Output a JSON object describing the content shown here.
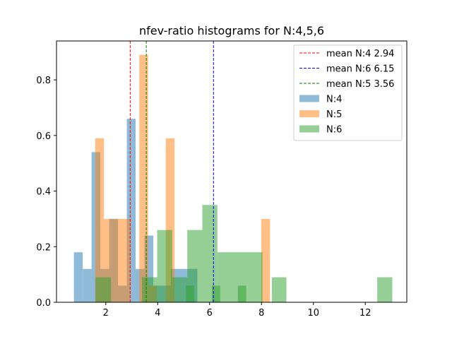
{
  "chart_data": {
    "type": "bar",
    "title": "nfev-ratio histograms for N:4,5,6",
    "xlabel": "",
    "ylabel": "",
    "xlim": [
      0.1,
      13.6
    ],
    "ylim": [
      0,
      0.94
    ],
    "xticks": [
      2,
      4,
      6,
      8,
      10,
      12
    ],
    "yticks": [
      0.0,
      0.2,
      0.4,
      0.6,
      0.8
    ],
    "xtick_labels": [
      "2",
      "4",
      "6",
      "8",
      "10",
      "12"
    ],
    "ytick_labels": [
      "0.0",
      "0.2",
      "0.4",
      "0.6",
      "0.8"
    ],
    "grid": false,
    "legend_position": "top-right",
    "series": [
      {
        "name": "N:4",
        "color": "#1f77b4",
        "bins": [
          {
            "x0": 0.77,
            "x1": 1.11,
            "y": 0.18
          },
          {
            "x0": 1.11,
            "x2": 0,
            "x1": 1.45,
            "y": 0.12
          },
          {
            "x0": 1.45,
            "x1": 1.79,
            "y": 0.54
          },
          {
            "x0": 1.79,
            "x1": 2.13,
            "y": 0.12
          },
          {
            "x0": 2.13,
            "x1": 2.47,
            "y": 0.3
          },
          {
            "x0": 2.47,
            "x1": 2.81,
            "y": 0.06
          },
          {
            "x0": 2.81,
            "x1": 3.15,
            "y": 0.66
          },
          {
            "x0": 3.15,
            "x1": 3.49,
            "y": 0.12
          },
          {
            "x0": 3.49,
            "x1": 3.83,
            "y": 0.24
          },
          {
            "x0": 3.83,
            "x1": 4.17,
            "y": 0.06
          },
          {
            "x0": 4.17,
            "x1": 4.51,
            "y": 0.06
          },
          {
            "x0": 4.51,
            "x1": 4.85,
            "y": 0.12
          },
          {
            "x0": 4.85,
            "x1": 5.19,
            "y": 0.12
          },
          {
            "x0": 5.19,
            "x1": 5.53,
            "y": 0.12
          }
        ]
      },
      {
        "name": "N:5",
        "color": "#ff7f0e",
        "bins": [
          {
            "x0": 1.59,
            "x1": 1.93,
            "y": 0.59
          },
          {
            "x0": 1.93,
            "x1": 2.27,
            "y": 0.3
          },
          {
            "x0": 2.27,
            "x1": 2.61,
            "y": 0.3
          },
          {
            "x0": 2.61,
            "x1": 2.95,
            "y": 0.3
          },
          {
            "x0": 3.29,
            "x1": 3.63,
            "y": 0.89
          },
          {
            "x0": 3.63,
            "x1": 3.97,
            "y": 0.06
          },
          {
            "x0": 4.31,
            "x1": 4.65,
            "y": 0.59
          },
          {
            "x0": 7.99,
            "x1": 8.33,
            "y": 0.3
          }
        ]
      },
      {
        "name": "N:6",
        "color": "#2ca02c",
        "bins": [
          {
            "x0": 1.6,
            "x1": 2.2,
            "y": 0.09
          },
          {
            "x0": 3.4,
            "x1": 3.98,
            "y": 0.09
          },
          {
            "x0": 3.98,
            "x1": 4.56,
            "y": 0.26
          },
          {
            "x0": 4.56,
            "x1": 5.14,
            "y": 0.09
          },
          {
            "x0": 5.14,
            "x1": 5.72,
            "y": 0.26
          },
          {
            "x0": 5.72,
            "x1": 6.3,
            "y": 0.35
          },
          {
            "x0": 6.3,
            "x1": 6.88,
            "y": 0.18
          },
          {
            "x0": 6.88,
            "x1": 7.46,
            "y": 0.18
          },
          {
            "x0": 7.46,
            "x1": 8.04,
            "y": 0.18
          },
          {
            "x0": 8.4,
            "x1": 8.96,
            "y": 0.09
          },
          {
            "x0": 12.46,
            "x1": 13.04,
            "y": 0.09
          }
        ],
        "small_bins": [
          {
            "x0": 5.09,
            "x1": 5.41,
            "y": 0.06
          },
          {
            "x0": 6.09,
            "x1": 6.41,
            "y": 0.06
          },
          {
            "x0": 7.09,
            "x1": 7.41,
            "y": 0.06
          }
        ]
      }
    ],
    "mean_lines": [
      {
        "label": "mean N:4 2.94",
        "x": 2.94,
        "color": "#ff0000"
      },
      {
        "label": "mean N:6 6.15",
        "x": 6.15,
        "color": "#0000ff"
      },
      {
        "label": "mean N:5 3.56",
        "x": 3.56,
        "color": "#008000"
      }
    ],
    "legend": [
      {
        "label": "mean N:4 2.94",
        "kind": "line",
        "color": "#ff0000"
      },
      {
        "label": "mean N:6 6.15",
        "kind": "line",
        "color": "#0000ff"
      },
      {
        "label": "mean N:5 3.56",
        "kind": "line",
        "color": "#008000"
      },
      {
        "label": "N:4",
        "kind": "patch",
        "color": "#1f77b4"
      },
      {
        "label": "N:5",
        "kind": "patch",
        "color": "#ff7f0e"
      },
      {
        "label": "N:6",
        "kind": "patch",
        "color": "#2ca02c"
      }
    ]
  }
}
